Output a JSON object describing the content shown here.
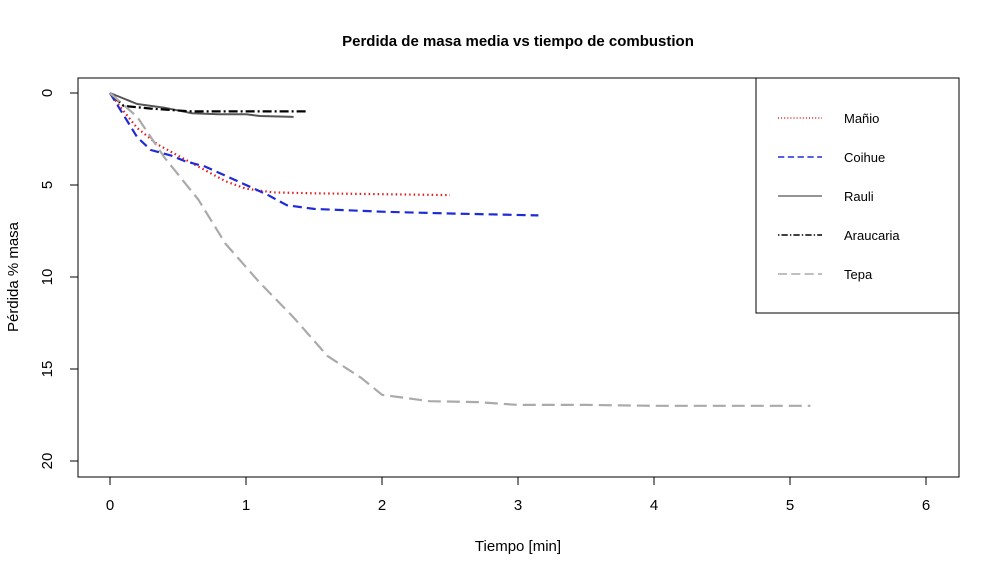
{
  "chart_data": {
    "type": "line",
    "title": "Perdida de masa media vs tiempo de combustion",
    "xlabel": "Tiempo [min]",
    "ylabel": "Pérdida % masa",
    "xlim": [
      0,
      6
    ],
    "ylim": [
      0,
      20
    ],
    "y_reversed": true,
    "xticks": [
      0,
      1,
      2,
      3,
      4,
      5,
      6
    ],
    "yticks": [
      0,
      5,
      10,
      15,
      20
    ],
    "grid": false,
    "legend_position": "top-right",
    "series": [
      {
        "name": "Mañio",
        "color": "#e31a1c",
        "dash": "dotted",
        "x": [
          0,
          0.08,
          0.2,
          0.35,
          0.5,
          0.65,
          0.85,
          1.0,
          1.2,
          1.5,
          2.0,
          2.5
        ],
        "y": [
          0,
          0.8,
          1.9,
          2.8,
          3.4,
          4.0,
          4.8,
          5.2,
          5.4,
          5.45,
          5.5,
          5.55
        ]
      },
      {
        "name": "Coihue",
        "color": "#1f2bd6",
        "dash": "dashed",
        "x": [
          0,
          0.1,
          0.2,
          0.3,
          0.45,
          0.55,
          0.7,
          0.85,
          1.0,
          1.15,
          1.3,
          1.5,
          2.0,
          2.5,
          3.15
        ],
        "y": [
          0,
          1.2,
          2.4,
          3.1,
          3.4,
          3.7,
          4.0,
          4.5,
          5.0,
          5.5,
          6.1,
          6.3,
          6.45,
          6.55,
          6.65
        ]
      },
      {
        "name": "Rauli",
        "color": "#555555",
        "dash": "solid",
        "x": [
          0,
          0.1,
          0.2,
          0.4,
          0.6,
          0.8,
          1.0,
          1.1,
          1.35
        ],
        "y": [
          0,
          0.3,
          0.6,
          0.8,
          1.1,
          1.15,
          1.15,
          1.25,
          1.3
        ]
      },
      {
        "name": "Araucaria",
        "color": "#000000",
        "dash": "dotdash",
        "x": [
          0,
          0.1,
          0.3,
          0.6,
          0.9,
          1.2,
          1.45
        ],
        "y": [
          0,
          0.7,
          0.85,
          1.0,
          1.0,
          1.0,
          1.0
        ]
      },
      {
        "name": "Tepa",
        "color": "#aaaaaa",
        "dash": "longdash",
        "x": [
          0,
          0.2,
          0.4,
          0.65,
          0.85,
          1.1,
          1.35,
          1.6,
          1.85,
          2.0,
          2.35,
          2.7,
          3.0,
          3.5,
          4.0,
          4.5,
          5.15
        ],
        "y": [
          0,
          1.3,
          3.5,
          5.8,
          8.2,
          10.3,
          12.2,
          14.3,
          15.5,
          16.4,
          16.75,
          16.8,
          16.95,
          16.95,
          17.0,
          17.0,
          17.0
        ]
      }
    ]
  }
}
